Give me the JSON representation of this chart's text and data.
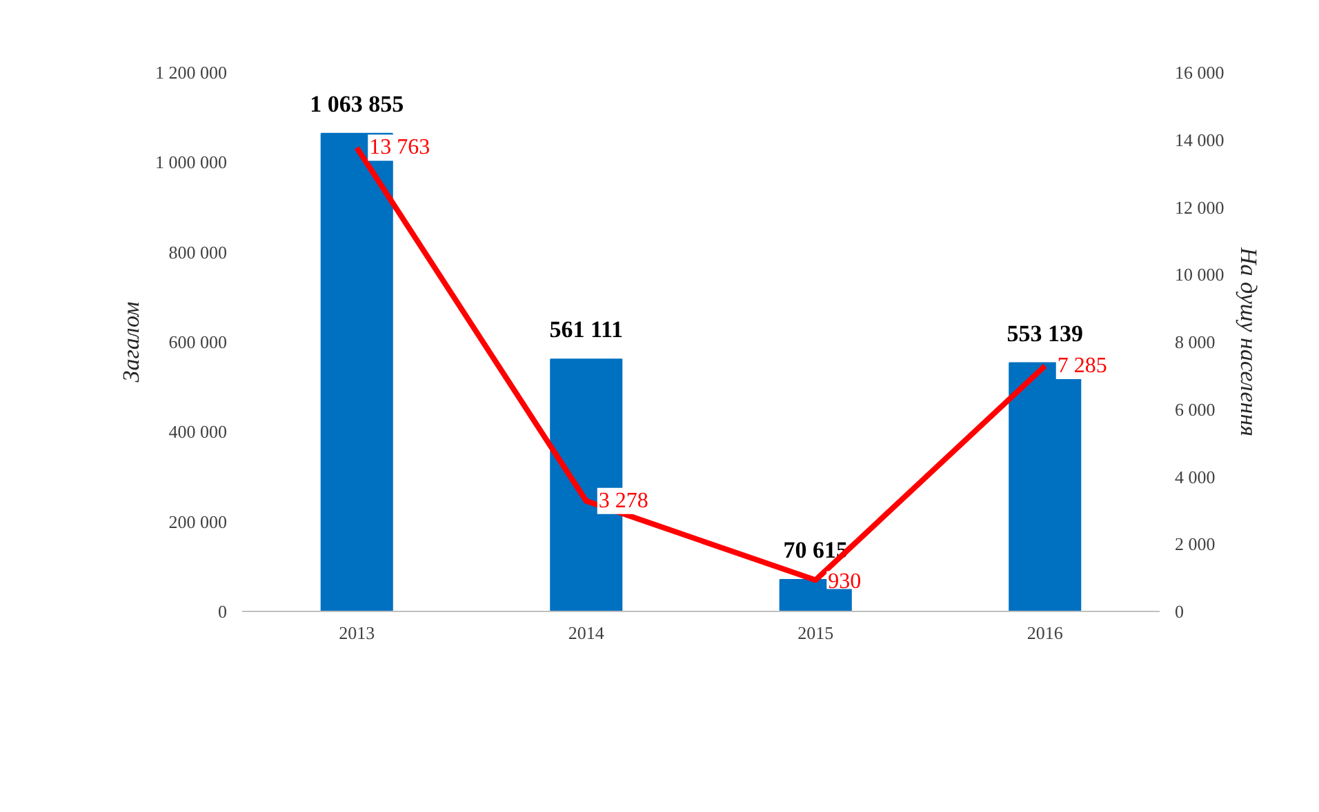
{
  "chart_data": {
    "type": "bar",
    "categories": [
      "2013",
      "2014",
      "2015",
      "2016"
    ],
    "ylabel": "Загалом",
    "y2label": "На душу населення",
    "ylim": [
      0,
      1200000
    ],
    "yticks": [
      {
        "value": 0,
        "label": "0"
      },
      {
        "value": 200000,
        "label": "200 000"
      },
      {
        "value": 400000,
        "label": "400 000"
      },
      {
        "value": 600000,
        "label": "600 000"
      },
      {
        "value": 800000,
        "label": "800 000"
      },
      {
        "value": 1000000,
        "label": "1 000 000"
      },
      {
        "value": 1200000,
        "label": "1 200 000"
      }
    ],
    "y2lim": [
      0,
      16000
    ],
    "y2ticks": [
      {
        "value": 0,
        "label": "0"
      },
      {
        "value": 2000,
        "label": "2 000"
      },
      {
        "value": 4000,
        "label": "4 000"
      },
      {
        "value": 6000,
        "label": "6 000"
      },
      {
        "value": 8000,
        "label": "8 000"
      },
      {
        "value": 10000,
        "label": "10 000"
      },
      {
        "value": 12000,
        "label": "12 000"
      },
      {
        "value": 14000,
        "label": "14 000"
      },
      {
        "value": 16000,
        "label": "16 000"
      }
    ],
    "grid": false,
    "series": [
      {
        "color": "#0070c0",
        "values": [
          1063855,
          561111,
          70615,
          553139
        ],
        "value_labels": [
          "1 063 855",
          "561 111",
          "70 615",
          "553 139"
        ]
      },
      {
        "type": "line",
        "axis": "y2",
        "color": "#ff0000",
        "values": [
          13763,
          3278,
          930,
          7285
        ],
        "value_labels": [
          "13 763",
          "3 278",
          "930",
          "7 285"
        ]
      }
    ]
  }
}
